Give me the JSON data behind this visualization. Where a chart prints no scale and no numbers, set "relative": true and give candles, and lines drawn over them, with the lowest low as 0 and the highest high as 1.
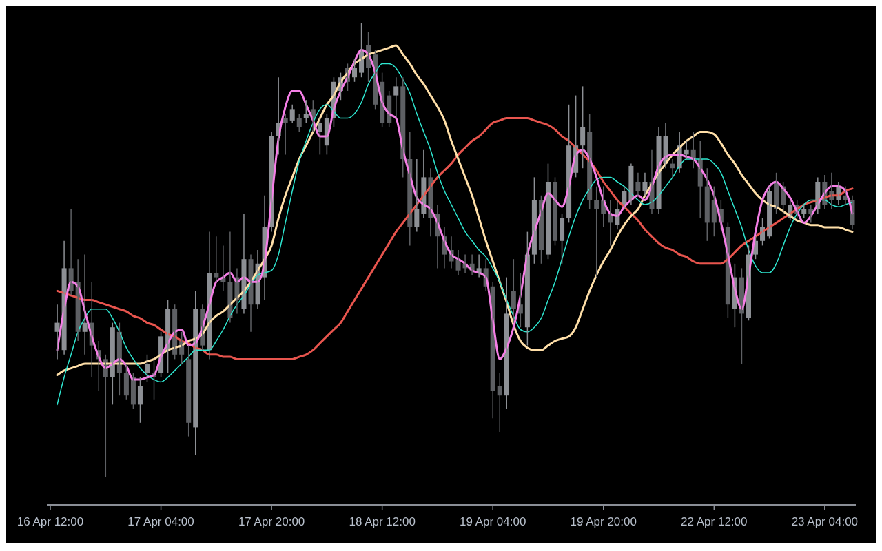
{
  "chart_data": {
    "type": "candlestick",
    "relative": true,
    "categories": [
      "16 Apr 12:00",
      null,
      null,
      null,
      null,
      null,
      null,
      null,
      null,
      null,
      null,
      null,
      null,
      null,
      null,
      null,
      "17 Apr 04:00",
      null,
      null,
      null,
      null,
      null,
      null,
      null,
      null,
      null,
      null,
      null,
      null,
      null,
      null,
      null,
      "17 Apr 20:00",
      null,
      null,
      null,
      null,
      null,
      null,
      null,
      null,
      null,
      null,
      null,
      null,
      null,
      null,
      null,
      "18 Apr 12:00",
      null,
      null,
      null,
      null,
      null,
      null,
      null,
      null,
      null,
      null,
      null,
      null,
      null,
      null,
      null,
      "19 Apr 04:00",
      null,
      null,
      null,
      null,
      null,
      null,
      null,
      null,
      null,
      null,
      null,
      null,
      null,
      null,
      null,
      "19 Apr 20:00",
      null,
      null,
      null,
      null,
      null,
      null,
      null,
      null,
      null,
      null,
      null,
      null,
      null,
      null,
      null,
      "22 Apr 12:00",
      null,
      null,
      null,
      null,
      null,
      null,
      null,
      null,
      null,
      null,
      null,
      null,
      null,
      null,
      null,
      "23 Apr 04:00",
      null,
      null,
      null,
      null
    ],
    "ohlc": [
      null,
      [
        0.32,
        0.38,
        0.26,
        0.34
      ],
      [
        0.28,
        0.52,
        0.27,
        0.46
      ],
      [
        0.46,
        0.59,
        0.4,
        0.41
      ],
      [
        0.43,
        0.48,
        0.3,
        0.32
      ],
      [
        0.32,
        0.49,
        0.27,
        0.34
      ],
      [
        0.34,
        0.43,
        0.22,
        0.29
      ],
      [
        0.28,
        0.3,
        0.19,
        0.26
      ],
      [
        0.26,
        0.27,
        0,
        0.22
      ],
      [
        0.22,
        0.34,
        0.16,
        0.33
      ],
      [
        0.32,
        0.34,
        0.18,
        0.23
      ],
      [
        0.23,
        0.25,
        0.17,
        0.18
      ],
      [
        0.22,
        0.23,
        0.15,
        0.16
      ],
      [
        0.16,
        0.22,
        0.12,
        0.2
      ],
      [
        0.23,
        0.27,
        0.21,
        0.25
      ],
      [
        0.23,
        0.26,
        0.17,
        0.22
      ],
      [
        0.23,
        0.32,
        0.22,
        0.31
      ],
      [
        0.28,
        0.39,
        0.23,
        0.37
      ],
      [
        0.37,
        0.38,
        0.26,
        0.27
      ],
      [
        0.3,
        0.32,
        0.25,
        0.27
      ],
      [
        0.26,
        0.29,
        0.09,
        0.12
      ],
      [
        0.11,
        0.41,
        0.05,
        0.37
      ],
      [
        0.37,
        0.38,
        0.28,
        0.29
      ],
      [
        0.28,
        0.54,
        0.26,
        0.45
      ],
      [
        0.45,
        0.53,
        0.43,
        0.44
      ],
      [
        0.44,
        0.51,
        0.41,
        0.43
      ],
      [
        0.43,
        0.54,
        0.34,
        0.35
      ],
      [
        0.44,
        0.46,
        0.36,
        0.39
      ],
      [
        0.37,
        0.58,
        0.36,
        0.48
      ],
      [
        0.48,
        0.49,
        0.32,
        0.38
      ],
      [
        0.38,
        0.5,
        0.37,
        0.47
      ],
      [
        0.44,
        0.62,
        0.39,
        0.55
      ],
      [
        0.55,
        0.76,
        0.54,
        0.75
      ],
      [
        0.75,
        0.88,
        0.71,
        0.78
      ],
      [
        0.79,
        0.8,
        0.71,
        0.78
      ],
      [
        0.785,
        0.82,
        0.78,
        0.81
      ],
      [
        0.79,
        0.8,
        0.76,
        0.77
      ],
      [
        0.79,
        0.83,
        0.78,
        0.8
      ],
      [
        0.81,
        0.83,
        0.76,
        0.79
      ],
      [
        0.76,
        0.79,
        0.71,
        0.78
      ],
      [
        0.73,
        0.8,
        0.71,
        0.79
      ],
      [
        0.79,
        0.88,
        0.77,
        0.87
      ],
      [
        0.85,
        0.89,
        0.83,
        0.88
      ],
      [
        0.9,
        0.91,
        0.85,
        0.87
      ],
      [
        0.88,
        0.92,
        0.87,
        0.9
      ],
      [
        0.89,
        1,
        0.88,
        0.94
      ],
      [
        0.95,
        0.98,
        0.87,
        0.9
      ],
      [
        0.93,
        0.94,
        0.81,
        0.82
      ],
      [
        0.87,
        0.89,
        0.77,
        0.78
      ],
      [
        0.84,
        0.85,
        0.77,
        0.78
      ],
      [
        0.84,
        0.88,
        0.79,
        0.86
      ],
      [
        0.86,
        0.88,
        0.66,
        0.7
      ],
      [
        0.7,
        0.76,
        0.51,
        0.55
      ],
      [
        0.55,
        0.7,
        0.54,
        0.59
      ],
      [
        0.58,
        0.72,
        0.57,
        0.66
      ],
      [
        0.66,
        0.68,
        0.53,
        0.57
      ],
      [
        0.58,
        0.6,
        0.46,
        0.53
      ],
      [
        0.53,
        0.55,
        0.46,
        0.49
      ],
      [
        0.5,
        0.53,
        0.46,
        0.475
      ],
      [
        0.48,
        0.5,
        0.445,
        0.455
      ],
      [
        0.47,
        0.49,
        0.45,
        0.46
      ],
      [
        0.47,
        0.49,
        0.445,
        0.455
      ],
      [
        0.45,
        0.49,
        0.44,
        0.46
      ],
      [
        0.46,
        0.48,
        0.41,
        0.42
      ],
      [
        0.42,
        0.43,
        0.13,
        0.19
      ],
      [
        0.2,
        0.23,
        0.1,
        0.18
      ],
      [
        0.18,
        0.44,
        0.15,
        0.36
      ],
      [
        0.41,
        0.48,
        0.34,
        0.37
      ],
      [
        0.38,
        0.45,
        0.33,
        0.36
      ],
      [
        0.33,
        0.54,
        0.29,
        0.49
      ],
      [
        0.49,
        0.66,
        0.47,
        0.61
      ],
      [
        0.61,
        0.62,
        0.47,
        0.5
      ],
      [
        0.49,
        0.69,
        0.48,
        0.65
      ],
      [
        0.65,
        0.66,
        0.51,
        0.52
      ],
      [
        0.52,
        0.58,
        0.47,
        0.57
      ],
      [
        0.57,
        0.82,
        0.56,
        0.73
      ],
      [
        0.67,
        0.84,
        0.66,
        0.73
      ],
      [
        0.73,
        0.86,
        0.68,
        0.77
      ],
      [
        0.76,
        0.8,
        0.59,
        0.61
      ],
      [
        0.61,
        0.64,
        0.44,
        0.59
      ],
      [
        0.61,
        0.64,
        0.55,
        0.58
      ],
      [
        0.58,
        0.61,
        0.51,
        0.56
      ],
      [
        0.555,
        0.61,
        0.545,
        0.59
      ],
      [
        0.6,
        0.64,
        0.59,
        0.63
      ],
      [
        0.61,
        0.69,
        0.6,
        0.685
      ],
      [
        0.65,
        0.67,
        0.62,
        0.63
      ],
      [
        0.63,
        0.67,
        0.62,
        0.65
      ],
      [
        0.65,
        0.72,
        0.58,
        0.59
      ],
      [
        0.59,
        0.77,
        0.58,
        0.75
      ],
      [
        0.69,
        0.78,
        0.68,
        0.75
      ],
      [
        0.69,
        0.7,
        0.66,
        0.68
      ],
      [
        0.68,
        0.76,
        0.67,
        0.73
      ],
      [
        0.71,
        0.74,
        0.7,
        0.72
      ],
      [
        0.72,
        0.76,
        0.68,
        0.7
      ],
      [
        0.7,
        0.74,
        0.57,
        0.64
      ],
      [
        0.64,
        0.68,
        0.52,
        0.56
      ],
      [
        0.61,
        0.64,
        0.53,
        0.56
      ],
      [
        0.59,
        0.61,
        0.545,
        0.56
      ],
      [
        0.55,
        0.56,
        0.35,
        0.38
      ],
      [
        0.37,
        0.47,
        0.33,
        0.44
      ],
      [
        0.44,
        0.46,
        0.25,
        0.36
      ],
      [
        0.35,
        0.51,
        0.345,
        0.49
      ],
      [
        0.49,
        0.53,
        0.48,
        0.52
      ],
      [
        0.52,
        0.57,
        0.51,
        0.55
      ],
      [
        0.53,
        0.64,
        0.525,
        0.63
      ],
      [
        0.65,
        0.67,
        0.58,
        0.59
      ],
      [
        0.64,
        0.65,
        0.58,
        0.6
      ],
      [
        0.57,
        0.61,
        0.565,
        0.6
      ],
      [
        0.6,
        0.61,
        0.57,
        0.58
      ],
      [
        0.58,
        0.6,
        0.57,
        0.59
      ],
      [
        0.59,
        0.6,
        0.56,
        0.58
      ],
      [
        0.59,
        0.66,
        0.58,
        0.65
      ],
      [
        0.65,
        0.665,
        0.59,
        0.6
      ],
      [
        0.63,
        0.67,
        0.59,
        0.61
      ],
      [
        0.61,
        0.65,
        0.6,
        0.64
      ],
      [
        0.62,
        0.64,
        0.6,
        0.61
      ],
      [
        0.61,
        0.62,
        0.545,
        0.555
      ]
    ],
    "colors": [
      null,
      "#8d9095",
      "#8d9095",
      "#5e6064",
      "#5e6064",
      "#8d9095",
      "#5e6064",
      "#5e6064",
      "#5e6064",
      "#8d9095",
      "#5e6064",
      "#5e6064",
      "#5e6064",
      "#8d9095",
      "#8d9095",
      "#5e6064",
      "#8d9095",
      "#8d9095",
      "#5e6064",
      "#5e6064",
      "#5e6064",
      "#8d9095",
      "#5e6064",
      "#8d9095",
      "#5e6064",
      "#5e6064",
      "#5e6064",
      "#5e6064",
      "#8d9095",
      "#5e6064",
      "#8d9095",
      "#8d9095",
      "#8d9095",
      "#8d9095",
      "#5e6064",
      "#8d9095",
      "#5e6064",
      "#8d9095",
      "#5e6064",
      "#8d9095",
      "#8d9095",
      "#8d9095",
      "#8d9095",
      "#5e6064",
      "#8d9095",
      "#8d9095",
      "#5e6064",
      "#5e6064",
      "#5e6064",
      "#5e6064",
      "#8d9095",
      "#5e6064",
      "#5e6064",
      "#8d9095",
      "#8d9095",
      "#5e6064",
      "#5e6064",
      "#5e6064",
      "#5e6064",
      "#5e6064",
      "#5e6064",
      "#5e6064",
      "#8d9095",
      "#5e6064",
      "#5e6064",
      "#5e6064",
      "#8d9095",
      "#5e6064",
      "#5e6064",
      "#8d9095",
      "#8d9095",
      "#5e6064",
      "#8d9095",
      "#5e6064",
      "#8d9095",
      "#8d9095",
      "#8d9095",
      "#8d9095",
      "#5e6064",
      "#5e6064",
      "#5e6064",
      "#5e6064",
      "#8d9095",
      "#8d9095",
      "#8d9095",
      "#5e6064",
      "#8d9095",
      "#5e6064",
      "#8d9095",
      "#8d9095",
      "#5e6064",
      "#8d9095",
      "#8d9095",
      "#5e6064",
      "#5e6064",
      "#5e6064",
      "#5e6064",
      "#5e6064",
      "#5e6064",
      "#8d9095",
      "#5e6064",
      "#8d9095",
      "#8d9095",
      "#8d9095",
      "#8d9095",
      "#5e6064",
      "#5e6064",
      "#8d9095",
      "#5e6064",
      "#8d9095",
      "#5e6064",
      "#8d9095",
      "#5e6064",
      "#5e6064",
      "#8d9095",
      "#5e6064",
      "#5e6064"
    ],
    "series": [
      {
        "type": "line",
        "color": "#e8554e",
        "values": [
          null,
          0.41,
          0.405,
          0.4,
          0.395,
          0.39,
          0.39,
          0.385,
          0.38,
          0.375,
          0.37,
          0.365,
          0.355,
          0.35,
          0.34,
          0.335,
          0.325,
          0.315,
          0.31,
          0.3,
          0.295,
          0.285,
          0.28,
          0.27,
          0.27,
          0.265,
          0.265,
          0.26,
          0.26,
          0.26,
          0.26,
          0.26,
          0.26,
          0.26,
          0.26,
          0.26,
          0.265,
          0.27,
          0.28,
          0.295,
          0.31,
          0.325,
          0.34,
          0.365,
          0.39,
          0.415,
          0.44,
          0.465,
          0.49,
          0.515,
          0.54,
          0.56,
          0.58,
          0.6,
          0.62,
          0.64,
          0.66,
          0.675,
          0.69,
          0.71,
          0.725,
          0.74,
          0.75,
          0.765,
          0.78,
          0.785,
          0.79,
          0.79,
          0.79,
          0.79,
          0.785,
          0.78,
          0.775,
          0.765,
          0.75,
          0.74,
          0.725,
          0.71,
          0.695,
          0.675,
          0.65,
          0.63,
          0.61,
          0.595,
          0.58,
          0.565,
          0.545,
          0.53,
          0.515,
          0.505,
          0.5,
          0.49,
          0.485,
          0.475,
          0.47,
          0.47,
          0.47,
          0.47,
          0.48,
          0.495,
          0.51,
          0.52,
          0.53,
          0.54,
          0.55,
          0.56,
          0.57,
          0.58,
          0.59,
          0.6,
          0.605,
          0.61,
          0.615,
          0.62,
          0.62,
          0.63,
          0.635
        ]
      },
      {
        "type": "line",
        "color": "#ffdfa8",
        "values": [
          null,
          0.225,
          0.235,
          0.24,
          0.245,
          0.25,
          0.25,
          0.25,
          0.25,
          0.25,
          0.25,
          0.25,
          0.25,
          0.25,
          0.255,
          0.26,
          0.27,
          0.28,
          0.285,
          0.29,
          0.3,
          0.305,
          0.315,
          0.34,
          0.355,
          0.365,
          0.38,
          0.395,
          0.41,
          0.43,
          0.455,
          0.48,
          0.51,
          0.57,
          0.62,
          0.66,
          0.7,
          0.73,
          0.76,
          0.79,
          0.82,
          0.84,
          0.87,
          0.89,
          0.91,
          0.92,
          0.93,
          0.935,
          0.94,
          0.945,
          0.95,
          0.93,
          0.91,
          0.885,
          0.865,
          0.84,
          0.815,
          0.785,
          0.74,
          0.7,
          0.66,
          0.62,
          0.57,
          0.52,
          0.475,
          0.43,
          0.385,
          0.335,
          0.3,
          0.285,
          0.28,
          0.28,
          0.29,
          0.3,
          0.305,
          0.31,
          0.33,
          0.37,
          0.41,
          0.445,
          0.475,
          0.5,
          0.53,
          0.555,
          0.575,
          0.59,
          0.62,
          0.645,
          0.67,
          0.69,
          0.71,
          0.725,
          0.74,
          0.75,
          0.76,
          0.76,
          0.755,
          0.735,
          0.71,
          0.69,
          0.665,
          0.645,
          0.625,
          0.61,
          0.6,
          0.595,
          0.585,
          0.575,
          0.565,
          0.56,
          0.555,
          0.555,
          0.55,
          0.55,
          0.55,
          0.545,
          0.54
        ]
      },
      {
        "type": "line",
        "color": "#2ee6d0",
        "values": [
          null,
          0.16,
          0.22,
          0.27,
          0.32,
          0.35,
          0.37,
          0.37,
          0.37,
          0.35,
          0.32,
          0.285,
          0.26,
          0.24,
          0.225,
          0.215,
          0.21,
          0.22,
          0.235,
          0.25,
          0.265,
          0.28,
          0.28,
          0.28,
          0.3,
          0.325,
          0.355,
          0.38,
          0.4,
          0.425,
          0.445,
          0.45,
          0.455,
          0.49,
          0.56,
          0.63,
          0.695,
          0.74,
          0.78,
          0.81,
          0.82,
          0.805,
          0.79,
          0.79,
          0.8,
          0.825,
          0.865,
          0.89,
          0.91,
          0.91,
          0.9,
          0.875,
          0.845,
          0.8,
          0.76,
          0.72,
          0.67,
          0.63,
          0.6,
          0.57,
          0.54,
          0.52,
          0.5,
          0.485,
          0.46,
          0.43,
          0.39,
          0.355,
          0.325,
          0.32,
          0.33,
          0.35,
          0.39,
          0.43,
          0.48,
          0.53,
          0.575,
          0.61,
          0.635,
          0.655,
          0.66,
          0.66,
          0.65,
          0.64,
          0.625,
          0.61,
          0.6,
          0.605,
          0.62,
          0.64,
          0.66,
          0.685,
          0.7,
          0.7,
          0.7,
          0.7,
          0.69,
          0.67,
          0.63,
          0.59,
          0.55,
          0.5,
          0.465,
          0.45,
          0.45,
          0.47,
          0.51,
          0.55,
          0.58,
          0.6,
          0.61,
          0.61,
          0.61,
          0.6,
          0.595,
          0.6,
          0.605
        ]
      },
      {
        "type": "line",
        "color": "#f57fe6",
        "values": [
          null,
          0.28,
          0.37,
          0.43,
          0.42,
          0.365,
          0.31,
          0.265,
          0.24,
          0.25,
          0.26,
          0.245,
          0.215,
          0.215,
          0.22,
          0.225,
          0.265,
          0.295,
          0.32,
          0.325,
          0.29,
          0.295,
          0.33,
          0.38,
          0.43,
          0.44,
          0.45,
          0.43,
          0.44,
          0.43,
          0.43,
          0.475,
          0.61,
          0.745,
          0.815,
          0.85,
          0.85,
          0.82,
          0.785,
          0.75,
          0.75,
          0.81,
          0.85,
          0.88,
          0.915,
          0.94,
          0.93,
          0.89,
          0.825,
          0.8,
          0.79,
          0.72,
          0.665,
          0.615,
          0.6,
          0.59,
          0.56,
          0.52,
          0.49,
          0.48,
          0.47,
          0.455,
          0.45,
          0.44,
          0.345,
          0.26,
          0.285,
          0.33,
          0.4,
          0.49,
          0.54,
          0.585,
          0.625,
          0.61,
          0.595,
          0.64,
          0.71,
          0.72,
          0.7,
          0.66,
          0.61,
          0.58,
          0.575,
          0.595,
          0.61,
          0.62,
          0.61,
          0.64,
          0.685,
          0.705,
          0.71,
          0.71,
          0.705,
          0.7,
          0.68,
          0.655,
          0.62,
          0.56,
          0.49,
          0.415,
          0.37,
          0.445,
          0.54,
          0.61,
          0.64,
          0.65,
          0.635,
          0.615,
          0.585,
          0.56,
          0.575,
          0.6,
          0.625,
          0.64,
          0.64,
          0.63,
          0.58
        ]
      }
    ]
  }
}
